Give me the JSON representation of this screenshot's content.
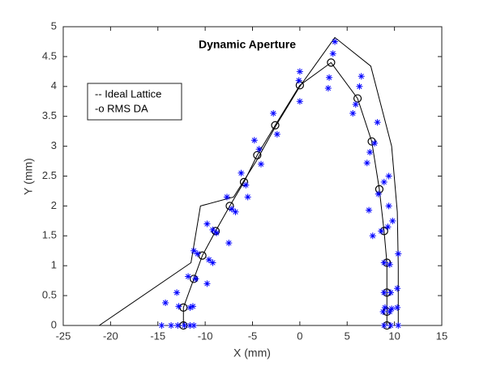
{
  "chart_data": {
    "type": "line",
    "title": "Dynamic Aperture",
    "x_label": "X (mm)",
    "y_label": "Y (mm)",
    "xlim": [
      -25,
      15
    ],
    "xticks": [
      -25,
      -20,
      -15,
      -10,
      -5,
      0,
      5,
      10,
      15
    ],
    "ylim": [
      0,
      5
    ],
    "yticks": [
      0,
      0.5,
      1,
      1.5,
      2,
      2.5,
      3,
      3.5,
      4,
      4.5,
      5
    ],
    "legend_position": "upper left",
    "series": [
      {
        "name": "-- Ideal Lattice",
        "color": "#000000",
        "marker": "none",
        "x": [
          -21.2,
          -11.5,
          -10.5,
          -7.0,
          -4.6,
          -2.5,
          0,
          3.7,
          7.5,
          9.7,
          10.3,
          10.4,
          10.4
        ],
        "y": [
          0,
          1.05,
          2.0,
          2.15,
          2.75,
          3.35,
          4.0,
          4.82,
          4.34,
          3.0,
          1.9,
          1.0,
          0
        ]
      },
      {
        "name": "-o RMS DA",
        "color": "#000000",
        "marker": "o",
        "x": [
          -12.3,
          -12.3,
          -11.2,
          -10.3,
          -8.9,
          -7.4,
          -5.9,
          -4.5,
          -2.6,
          0,
          3.3,
          6.1,
          7.6,
          8.4,
          8.9,
          9.2,
          9.2,
          9.2,
          9.2
        ],
        "y": [
          0,
          0.3,
          0.78,
          1.17,
          1.58,
          2.0,
          2.4,
          2.85,
          3.35,
          4.02,
          4.4,
          3.8,
          3.08,
          2.28,
          1.58,
          1.05,
          0.55,
          0.23,
          0
        ]
      },
      {
        "color": "#0000ff",
        "marker": "*",
        "x": [
          -14.6,
          -13.6,
          -12.9,
          -12.2,
          -11.6,
          -11.2,
          8.9,
          9.6,
          10.4,
          -14.2,
          -12.8,
          -11.6,
          -11.3,
          9.0,
          9.7,
          10.3,
          8.8,
          9.5,
          -13,
          8.9,
          9.6,
          10.3,
          -11.8,
          -11,
          -9.8,
          -11.2,
          -10.8,
          -9.6,
          -9.2,
          8.9,
          9.5,
          10.4,
          -9.8,
          -9.2,
          -8.8,
          -7.5,
          8.6,
          9.3,
          9.8,
          -7.7,
          -7.2,
          -6.8,
          -5.5,
          7.3,
          7.7,
          9.4,
          -6.2,
          -5.7,
          8.3,
          8.9,
          9.4,
          -4.8,
          -4.3,
          -4.1,
          7.1,
          7.4,
          7.9,
          -2.8,
          -2.4,
          8.2,
          0,
          0,
          -0.1,
          3.1,
          3.0,
          3.5,
          3.7,
          6.3,
          6.5,
          5.6,
          5.9
        ],
        "y": [
          0,
          0,
          0,
          0,
          0,
          0,
          0,
          0,
          0,
          0.38,
          0.32,
          0.3,
          0.32,
          0.3,
          0.28,
          0.3,
          0.23,
          0.23,
          0.55,
          0.55,
          0.55,
          0.62,
          0.82,
          0.78,
          0.7,
          1.25,
          1.2,
          1.1,
          1.05,
          1.05,
          1.02,
          1.2,
          1.7,
          1.6,
          1.55,
          1.38,
          1.58,
          1.65,
          1.75,
          2.15,
          1.95,
          1.9,
          2.15,
          1.93,
          1.5,
          2.0,
          2.55,
          2.35,
          2.2,
          2.4,
          2.5,
          3.1,
          2.95,
          2.7,
          2.72,
          2.9,
          3.05,
          3.55,
          3.2,
          3.4,
          4.25,
          3.75,
          4.1,
          4.15,
          3.97,
          4.55,
          4.75,
          4.0,
          4.17,
          3.55,
          3.7
        ]
      }
    ]
  }
}
